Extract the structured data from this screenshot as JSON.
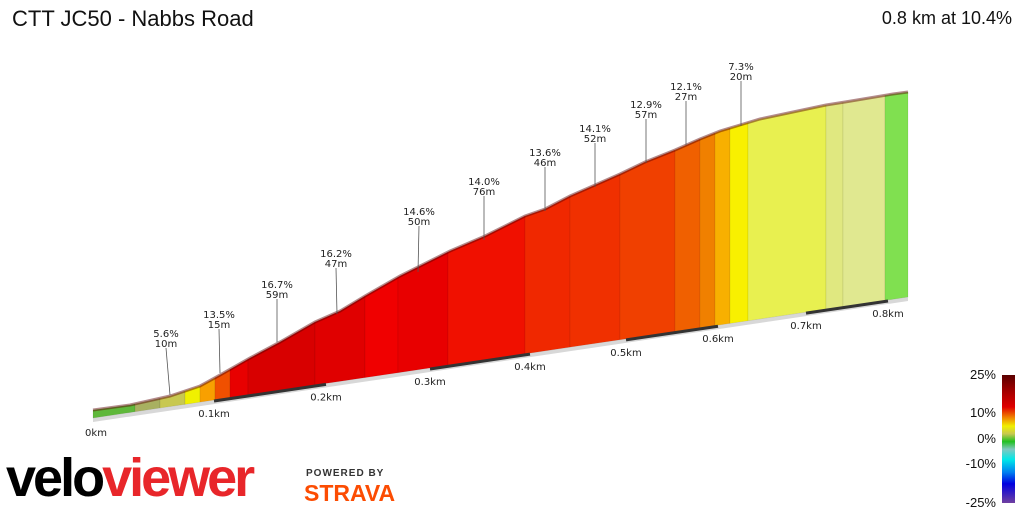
{
  "title": "CTT JC50 - Nabbs Road",
  "summary": "0.8 km at 10.4%",
  "legend": {
    "labels": [
      "25%",
      "10%",
      "0%",
      "-10%",
      "-25%"
    ]
  },
  "logo": {
    "brand": "veloviewer",
    "powered_by": "POWERED BY",
    "partner": "STRAVA"
  },
  "chart_data": {
    "type": "area",
    "title": "",
    "xlabel": "",
    "ylabel": "",
    "x_ticks": [
      "0km",
      "0.1km",
      "0.2km",
      "0.3km",
      "0.4km",
      "0.5km",
      "0.6km",
      "0.7km",
      "0.8km"
    ],
    "xlim": [
      0,
      0.8
    ],
    "segments": [
      {
        "grade": "5.6%",
        "length": "10m"
      },
      {
        "grade": "13.5%",
        "length": "15m"
      },
      {
        "grade": "16.7%",
        "length": "59m"
      },
      {
        "grade": "16.2%",
        "length": "47m"
      },
      {
        "grade": "14.6%",
        "length": "50m"
      },
      {
        "grade": "14.0%",
        "length": "76m"
      },
      {
        "grade": "13.6%",
        "length": "46m"
      },
      {
        "grade": "14.1%",
        "length": "52m"
      },
      {
        "grade": "12.9%",
        "length": "57m"
      },
      {
        "grade": "12.1%",
        "length": "27m"
      },
      {
        "grade": "7.3%",
        "length": "20m"
      }
    ],
    "color_scale": {
      "min": "-25%",
      "max": "25%"
    },
    "band_colors": [
      "#5fb83a",
      "#a8b060",
      "#c8c850",
      "#f0f000",
      "#f8a000",
      "#f05000",
      "#e80000",
      "#d80000",
      "#e00000",
      "#f00000",
      "#e80000",
      "#f01000",
      "#f02800",
      "#f03000",
      "#f04000",
      "#f06000",
      "#f08000",
      "#f8b000",
      "#f8f000",
      "#e8f050",
      "#e0e880",
      "#e0e890",
      "#80e050"
    ]
  }
}
